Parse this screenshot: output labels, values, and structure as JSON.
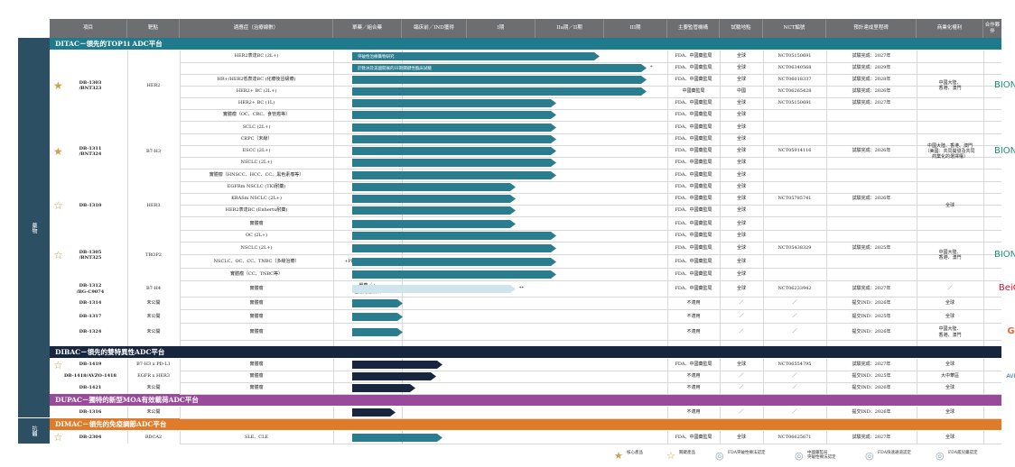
{
  "colors": {
    "header": "#6d6e71",
    "teal_bar": "#2a7d8f",
    "ditac": "#1f7a8c",
    "dibac": "#17253f",
    "dupac": "#9a4a9a",
    "dimac": "#e07b2a",
    "sidebar": "#2d4f63",
    "star": "#c9a34a"
  },
  "header": {
    "project": "項目",
    "target": "靶點",
    "indication": "適應症（治療線數）",
    "mono_combo": "單藥／組合藥",
    "clinical_ind": "臨床前／IND獲得",
    "phase1": "I期",
    "phase2": "IIa期／II期",
    "phase3": "III期",
    "regulators": "主要監管機構",
    "region": "試驗地點",
    "nct": "NCT編號",
    "milestone": "預計達成里程碑",
    "commercial": "商業化權利",
    "partner": "合作夥伴"
  },
  "sidebar": {
    "left_top": "藥物",
    "left_bottom": "抗體"
  },
  "platforms": [
    {
      "label": "DITAC－領先的TOP1i ADC平台"
    },
    {
      "label": "DIBAC－領先的雙特異性ADC平台"
    },
    {
      "label": "DUPAC－獨特的新型MOA有效載荷ADC平台"
    },
    {
      "label": "DIMAC－領先的免疫調節ADC平台"
    }
  ],
  "rows": [
    {
      "ind": "HER2表達BC (2L+)",
      "mono": "單藥",
      "reg": "FDA、中國藥監局",
      "site": "全球",
      "nct": "NCT05150691",
      "ms": "試驗完成：2027年",
      "progress": 3.7,
      "bar_label": "突破性治療藥物研究"
    },
    {
      "ind": "",
      "mono": "單藥",
      "reg": "FDA、中國藥監局",
      "site": "全球",
      "nct": "NCT06340568",
      "ms": "試驗完成：2029年",
      "progress": 4.4,
      "bar_label": "於歐洲及美國開展的III期關鍵性臨床試驗"
    },
    {
      "ind": "HR+/HER2低表達BC (化療後晉級療)",
      "mono": "單藥",
      "reg": "FDA、中國藥監局",
      "site": "全球",
      "nct": "NCT06018337",
      "ms": "試驗完成：2028年",
      "progress": 4.4,
      "bar_label": ""
    },
    {
      "ind": "HER2+ BC (2L+)",
      "mono": "單藥",
      "reg": "中國藥監局",
      "site": "中國",
      "nct": "NCT06265428",
      "ms": "試驗完成：2026年",
      "progress": 4.4,
      "bar_label": ""
    },
    {
      "ind": "HER2+ BC (1L)",
      "mono": "+帕妥珠單抗",
      "reg": "FDA、中國藥監局",
      "site": "全球",
      "nct": "NCT05150691",
      "ms": "試驗完成：2027年",
      "progress": 3.05,
      "bar_label": ""
    },
    {
      "ind": "實體瘤（OC、CRC、食管癌等）",
      "mono": "單藥",
      "reg": "FDA、中國藥監局",
      "site": "全球",
      "nct": "",
      "ms": "",
      "progress": 3.05,
      "bar_label": ""
    },
    {
      "ind": "SCLC (2L+)",
      "mono": "單藥",
      "reg": "FDA、中國藥監局",
      "site": "全球",
      "nct": "",
      "ms": "",
      "progress": 3.05,
      "bar_label": ""
    },
    {
      "ind": "CRPC（末線）",
      "mono": "單藥",
      "reg": "FDA、中國藥監局",
      "site": "全球",
      "nct": "",
      "ms": "",
      "progress": 3.05,
      "bar_label": ""
    },
    {
      "ind": "ESCC (2L+)",
      "mono": "單藥",
      "reg": "FDA、中國藥監局",
      "site": "全球",
      "nct": "NCT05914116",
      "ms": "試驗完成：2026年",
      "progress": 3.05,
      "bar_label": ""
    },
    {
      "ind": "NSCLC (2L+)",
      "mono": "單藥",
      "reg": "FDA、中國藥監局",
      "site": "全球",
      "nct": "",
      "ms": "",
      "progress": 3.05,
      "bar_label": ""
    },
    {
      "ind": "實體瘤（HNSCC、HCC、CC、黑色素瘤等）",
      "mono": "單藥",
      "reg": "FDA、中國藥監局",
      "site": "全球",
      "nct": "",
      "ms": "",
      "progress": 3.05,
      "bar_label": ""
    },
    {
      "ind": "EGFRm NSCLC (TKI耐藥)",
      "mono": "+奧希替尼",
      "reg": "FDA、中國藥監局",
      "site": "全球",
      "nct": "",
      "ms": "",
      "progress": 2.45,
      "bar_label": ""
    },
    {
      "ind": "KRASm NSCLC (2L+)",
      "mono": "單藥",
      "reg": "FDA、中國藥監局",
      "site": "全球",
      "nct": "NCT05785741",
      "ms": "試驗完成：2026年",
      "progress": 2.45,
      "bar_label": ""
    },
    {
      "ind": "HER2表達BC (Enhertu耐藥)",
      "mono": "+曲妥珠單抗",
      "reg": "FDA、中國藥監局",
      "site": "全球",
      "nct": "",
      "ms": "",
      "progress": 2.45,
      "bar_label": ""
    },
    {
      "ind": "實體瘤",
      "mono": "單藥",
      "reg": "FDA、中國藥監局",
      "site": "全球",
      "nct": "",
      "ms": "",
      "progress": 2.45,
      "bar_label": ""
    },
    {
      "ind": "OC (2L+)",
      "mono": "單藥",
      "reg": "FDA、中國藥監局",
      "site": "全球",
      "nct": "",
      "ms": "",
      "progress": 3.05,
      "bar_label": ""
    },
    {
      "ind": "NSCLC (2L+)",
      "mono": "單藥",
      "reg": "FDA、中國藥監局",
      "site": "全球",
      "nct": "NCT05438329",
      "ms": "試驗完成：2025年",
      "progress": 3.05,
      "bar_label": ""
    },
    {
      "ind": "NSCLC、OC、CC、TNBC（多線治療）",
      "mono": "+PD-L1xVEGF bsAb",
      "reg": "FDA、中國藥監局",
      "site": "全球",
      "nct": "",
      "ms": "",
      "progress": 3.05,
      "bar_label": ""
    },
    {
      "ind": "實體瘤（CC、TNBC等）",
      "mono": "單藥",
      "reg": "FDA、中國藥監局",
      "site": "全球",
      "nct": "",
      "ms": "",
      "progress": 3.05,
      "bar_label": ""
    },
    {
      "ind": "實體瘤",
      "mono": "單藥／+\n腫瘤免疫療法",
      "reg": "FDA、中國藥監局",
      "site": "全球",
      "nct": "NCT06233942",
      "ms": "試驗完成：2027年",
      "progress": 2.45,
      "bar_label": ""
    },
    {
      "ind": "實體瘤",
      "mono": "單藥",
      "reg": "不適用",
      "site": "／",
      "nct": "／",
      "ms": "提交IND：2026年",
      "progress": 0.75,
      "bar_label": ""
    },
    {
      "ind": "實體瘤",
      "mono": "單藥",
      "reg": "不適用",
      "site": "／",
      "nct": "／",
      "ms": "提交IND：2025年",
      "progress": 0.75,
      "bar_label": ""
    },
    {
      "ind": "實體瘤",
      "mono": "單藥",
      "reg": "不適用",
      "site": "／",
      "nct": "／",
      "ms": "提交IND：2026年",
      "progress": 0.75,
      "bar_label": ""
    },
    {
      "ind": "實體瘤",
      "mono": "單藥",
      "reg": "FDA、中國藥監局",
      "site": "全球",
      "nct": "NCT06554795",
      "ms": "試驗完成：2027年",
      "progress": 1.35,
      "bar_label": ""
    },
    {
      "ind": "實體瘤",
      "mono": "單藥",
      "reg": "不適用",
      "site": "／",
      "nct": "／",
      "ms": "提交IND：2025年",
      "progress": 1.25,
      "bar_label": ""
    },
    {
      "ind": "實體瘤",
      "mono": "單藥",
      "reg": "不適用",
      "site": "／",
      "nct": "／",
      "ms": "提交IND：2026年",
      "progress": 0.95,
      "bar_label": ""
    },
    {
      "ind": "",
      "mono": "",
      "reg": "不適用",
      "site": "／",
      "nct": "／",
      "ms": "提交IND：2026年",
      "progress": 0.65,
      "bar_label": ""
    },
    {
      "ind": "SLE、CLE",
      "mono": "單藥",
      "reg": "FDA、中國藥監局",
      "site": "全球",
      "nct": "NCT06625671",
      "ms": "試驗完成：2027年",
      "progress": 1.35,
      "bar_label": ""
    }
  ],
  "projects": [
    {
      "name": "DB-1303\n/BNT323",
      "target": "HER2",
      "commercial": "中國大陸、\n香港、澳門",
      "partner": "BIONTECH"
    },
    {
      "name": "DB-1311\n/BNT324",
      "target": "B7-H3",
      "commercial": "中國大陸、香港、澳門\n（美國：共同開發及共同\n商業化的選擇權）",
      "partner": "BIONTECH"
    },
    {
      "name": "DB-1310",
      "target": "HER3",
      "commercial": "全球",
      "partner": ""
    },
    {
      "name": "DB-1305\n/BNT325",
      "target": "TROP2",
      "commercial": "中國大陸、\n香港、澳門",
      "partner": "BIONTECH"
    },
    {
      "name": "DB-1312\n/BG-C9074",
      "target": "B7-H4",
      "commercial": "／",
      "partner": "BeiGene"
    },
    {
      "name": "DB-1314",
      "target": "未公開",
      "commercial": "全球",
      "partner": ""
    },
    {
      "name": "DB-1317",
      "target": "未公開",
      "commercial": "全球",
      "partner": ""
    },
    {
      "name": "DB-1324",
      "target": "未公開",
      "commercial": "中國大陸、\n香港、澳門",
      "partner": "GSK"
    },
    {
      "name": "DB-1419",
      "target": "B7-H3 x PD-L1",
      "commercial": "全球",
      "partner": ""
    },
    {
      "name": "DB-1418/AVZO-1418",
      "target": "EGFR x HER3",
      "commercial": "大中華區",
      "partner": "AVENZO"
    },
    {
      "name": "DB-1421",
      "target": "未公開",
      "commercial": "全球",
      "partner": ""
    },
    {
      "name": "DB-1316",
      "target": "未公開",
      "commercial": "全球",
      "partner": ""
    },
    {
      "name": "DB-2304",
      "target": "BDCA2",
      "commercial": "全球",
      "partner": ""
    }
  ],
  "notes": {
    "star1": "*",
    "star2": "**"
  },
  "legend": [
    {
      "label": "核心產品",
      "icon": "filled-star-icon"
    },
    {
      "label": "關鍵產品",
      "icon": "outline-star-icon"
    },
    {
      "label": "FDA突破性療法認定",
      "icon": "fda-btd-medal-icon"
    },
    {
      "label": "中國藥監局\n突破性療法認定",
      "icon": "nmpa-btd-medal-icon"
    },
    {
      "label": "FDA快速通道認定",
      "icon": "fda-fast-track-icon"
    },
    {
      "label": "FDA孤兒藥認定",
      "icon": "fda-orphan-icon"
    }
  ]
}
